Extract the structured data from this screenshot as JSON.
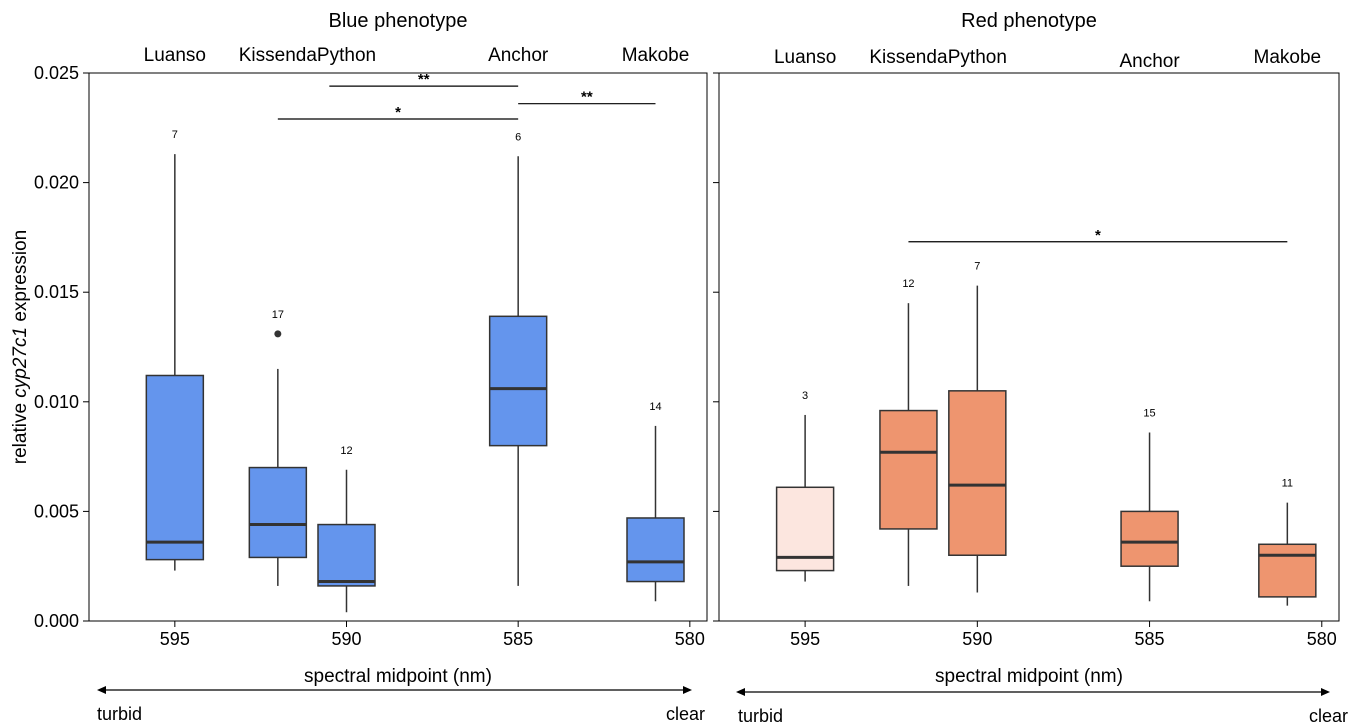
{
  "chart_data": [
    {
      "type": "box",
      "title": "Blue phenotype",
      "xlabel": "spectral midpoint (nm)",
      "ylabel_prefix": "relative ",
      "ylabel_italic": "cyp27c1",
      "ylabel_suffix": " expression",
      "ylim": [
        0,
        0.025
      ],
      "yticks": [
        "0.000",
        "0.005",
        "0.010",
        "0.015",
        "0.020",
        "0.025"
      ],
      "xlim_desc": [
        597.5,
        579.5
      ],
      "xticks": [
        595,
        590,
        585,
        580
      ],
      "arrow_left": "turbid",
      "arrow_right": "clear",
      "box_color": "#6495ED",
      "populations": [
        {
          "name": "Luanso",
          "x": 595.0,
          "n": "7",
          "box_color": "#6495ED",
          "whisker_low": 0.0023,
          "q1": 0.0028,
          "median": 0.0036,
          "q3": 0.0112,
          "whisker_high": 0.0213,
          "outliers": []
        },
        {
          "name": "Kissenda",
          "x": 592.0,
          "n": "17",
          "box_color": "#6495ED",
          "whisker_low": 0.0016,
          "q1": 0.0029,
          "median": 0.0044,
          "q3": 0.007,
          "whisker_high": 0.0115,
          "outliers": [
            0.0131
          ]
        },
        {
          "name": "Python",
          "x": 590.0,
          "n": "12",
          "box_color": "#6495ED",
          "whisker_low": 0.0004,
          "q1": 0.0016,
          "median": 0.0018,
          "q3": 0.0044,
          "whisker_high": 0.0069,
          "outliers": []
        },
        {
          "name": "Anchor",
          "x": 585.0,
          "n": "6",
          "box_color": "#6495ED",
          "whisker_low": 0.0016,
          "q1": 0.008,
          "median": 0.0106,
          "q3": 0.0139,
          "whisker_high": 0.0212,
          "outliers": []
        },
        {
          "name": "Makobe",
          "x": 581.0,
          "n": "14",
          "box_color": "#6495ED",
          "whisker_low": 0.0009,
          "q1": 0.0018,
          "median": 0.0027,
          "q3": 0.0047,
          "whisker_high": 0.0089,
          "outliers": []
        }
      ],
      "significance": [
        {
          "from": 590.5,
          "to": 585.0,
          "y": 0.0244,
          "label": "**"
        },
        {
          "from": 585.0,
          "to": 581.0,
          "y": 0.0236,
          "label": "**"
        },
        {
          "from": 592.0,
          "to": 585.0,
          "y": 0.0229,
          "label": "*"
        }
      ]
    },
    {
      "type": "box",
      "title": "Red phenotype",
      "xlabel": "spectral midpoint (nm)",
      "ylim": [
        0,
        0.025
      ],
      "xlim_desc": [
        597.5,
        579.5
      ],
      "xticks": [
        595,
        590,
        585,
        580
      ],
      "arrow_left": "turbid",
      "arrow_right": "clear",
      "box_color": "#EE956F",
      "populations": [
        {
          "name": "Luanso",
          "x": 595.0,
          "n": "3",
          "box_color": "#FCE6DF",
          "whisker_low": 0.0018,
          "q1": 0.0023,
          "median": 0.0029,
          "q3": 0.0061,
          "whisker_high": 0.0094,
          "outliers": []
        },
        {
          "name": "Kissenda",
          "x": 592.0,
          "n": "12",
          "box_color": "#EE956F",
          "whisker_low": 0.0016,
          "q1": 0.0042,
          "median": 0.0077,
          "q3": 0.0096,
          "whisker_high": 0.0145,
          "outliers": []
        },
        {
          "name": "Python",
          "x": 590.0,
          "n": "7",
          "box_color": "#EE956F",
          "whisker_low": 0.0013,
          "q1": 0.003,
          "median": 0.0062,
          "q3": 0.0105,
          "whisker_high": 0.0153,
          "outliers": []
        },
        {
          "name": "Anchor",
          "x": 585.0,
          "n": "15",
          "box_color": "#EE956F",
          "whisker_low": 0.0009,
          "q1": 0.0025,
          "median": 0.0036,
          "q3": 0.005,
          "whisker_high": 0.0086,
          "outliers": []
        },
        {
          "name": "Makobe",
          "x": 581.0,
          "n": "11",
          "box_color": "#EE956F",
          "whisker_low": 0.0007,
          "q1": 0.0011,
          "median": 0.003,
          "q3": 0.0035,
          "whisker_high": 0.0054,
          "outliers": []
        }
      ],
      "significance": [
        {
          "from": 592.0,
          "to": 581.0,
          "y": 0.0173,
          "label": "*"
        }
      ]
    }
  ]
}
